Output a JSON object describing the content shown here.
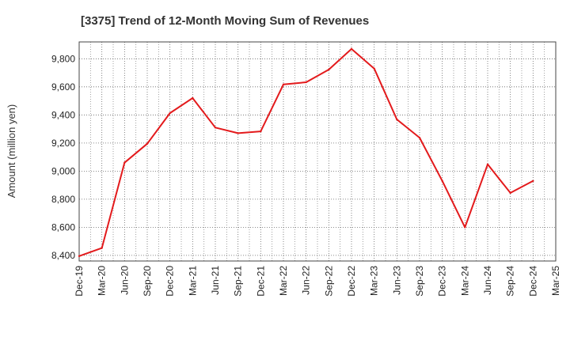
{
  "chart_data": {
    "type": "line",
    "title": "[3375]  Trend of 12-Month Moving Sum of Revenues",
    "xlabel": "",
    "ylabel": "Amount (million yen)",
    "ylim": [
      8360,
      9920
    ],
    "yticks": [
      "8,400",
      "8,600",
      "8,800",
      "9,000",
      "9,200",
      "9,400",
      "9,600",
      "9,800"
    ],
    "categories": [
      "Dec-19",
      "Mar-20",
      "Jun-20",
      "Sep-20",
      "Dec-20",
      "Mar-21",
      "Jun-21",
      "Sep-21",
      "Dec-21",
      "Mar-22",
      "Jun-22",
      "Sep-22",
      "Dec-22",
      "Mar-23",
      "Jun-23",
      "Sep-23",
      "Dec-23",
      "Mar-24",
      "Jun-24",
      "Sep-24",
      "Dec-24",
      "Mar-25"
    ],
    "series": [
      {
        "color": "#e31a1c",
        "values": [
          8395,
          8453,
          9060,
          9195,
          9413,
          9520,
          9310,
          9270,
          9283,
          9617,
          9633,
          9723,
          9870,
          9730,
          9368,
          9238,
          8930,
          8600,
          9048,
          8845,
          8930,
          null
        ]
      }
    ],
    "grid": true,
    "grid_style": "dotted",
    "legend": "none"
  }
}
